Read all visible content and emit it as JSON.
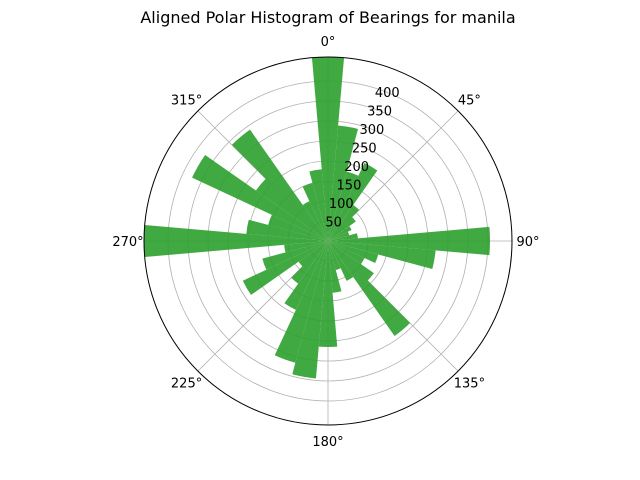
{
  "chart_data": {
    "type": "polar-bar",
    "title": "Aligned Polar Histogram of Bearings for manila",
    "theta_zero": "N",
    "theta_direction": "clockwise",
    "theta_ticks": [
      "0°",
      "45°",
      "90°",
      "135°",
      "180°",
      "225°",
      "270°",
      "315°"
    ],
    "r_ticks": [
      "50",
      "100",
      "150",
      "200",
      "250",
      "300",
      "350",
      "400"
    ],
    "r_tick_values": [
      50,
      100,
      150,
      200,
      250,
      300,
      350,
      400
    ],
    "rlim": [
      0,
      460
    ],
    "bar_color": "#2ca02c",
    "bar_alpha": 0.9,
    "grid": true,
    "bins": [
      {
        "center_deg": 0,
        "value": 465
      },
      {
        "center_deg": 10,
        "value": 290
      },
      {
        "center_deg": 20,
        "value": 180
      },
      {
        "center_deg": 30,
        "value": 215
      },
      {
        "center_deg": 40,
        "value": 110
      },
      {
        "center_deg": 50,
        "value": 85
      },
      {
        "center_deg": 60,
        "value": 65
      },
      {
        "center_deg": 70,
        "value": 55
      },
      {
        "center_deg": 80,
        "value": 75
      },
      {
        "center_deg": 90,
        "value": 405
      },
      {
        "center_deg": 100,
        "value": 270
      },
      {
        "center_deg": 110,
        "value": 130
      },
      {
        "center_deg": 120,
        "value": 100
      },
      {
        "center_deg": 130,
        "value": 140
      },
      {
        "center_deg": 140,
        "value": 290
      },
      {
        "center_deg": 150,
        "value": 110
      },
      {
        "center_deg": 160,
        "value": 75
      },
      {
        "center_deg": 170,
        "value": 130
      },
      {
        "center_deg": 180,
        "value": 265
      },
      {
        "center_deg": 190,
        "value": 345
      },
      {
        "center_deg": 200,
        "value": 315
      },
      {
        "center_deg": 210,
        "value": 190
      },
      {
        "center_deg": 220,
        "value": 130
      },
      {
        "center_deg": 230,
        "value": 90
      },
      {
        "center_deg": 240,
        "value": 235
      },
      {
        "center_deg": 250,
        "value": 170
      },
      {
        "center_deg": 260,
        "value": 110
      },
      {
        "center_deg": 270,
        "value": 460
      },
      {
        "center_deg": 280,
        "value": 205
      },
      {
        "center_deg": 290,
        "value": 155
      },
      {
        "center_deg": 300,
        "value": 375
      },
      {
        "center_deg": 310,
        "value": 220
      },
      {
        "center_deg": 320,
        "value": 340
      },
      {
        "center_deg": 330,
        "value": 110
      },
      {
        "center_deg": 340,
        "value": 150
      },
      {
        "center_deg": 350,
        "value": 180
      }
    ]
  }
}
